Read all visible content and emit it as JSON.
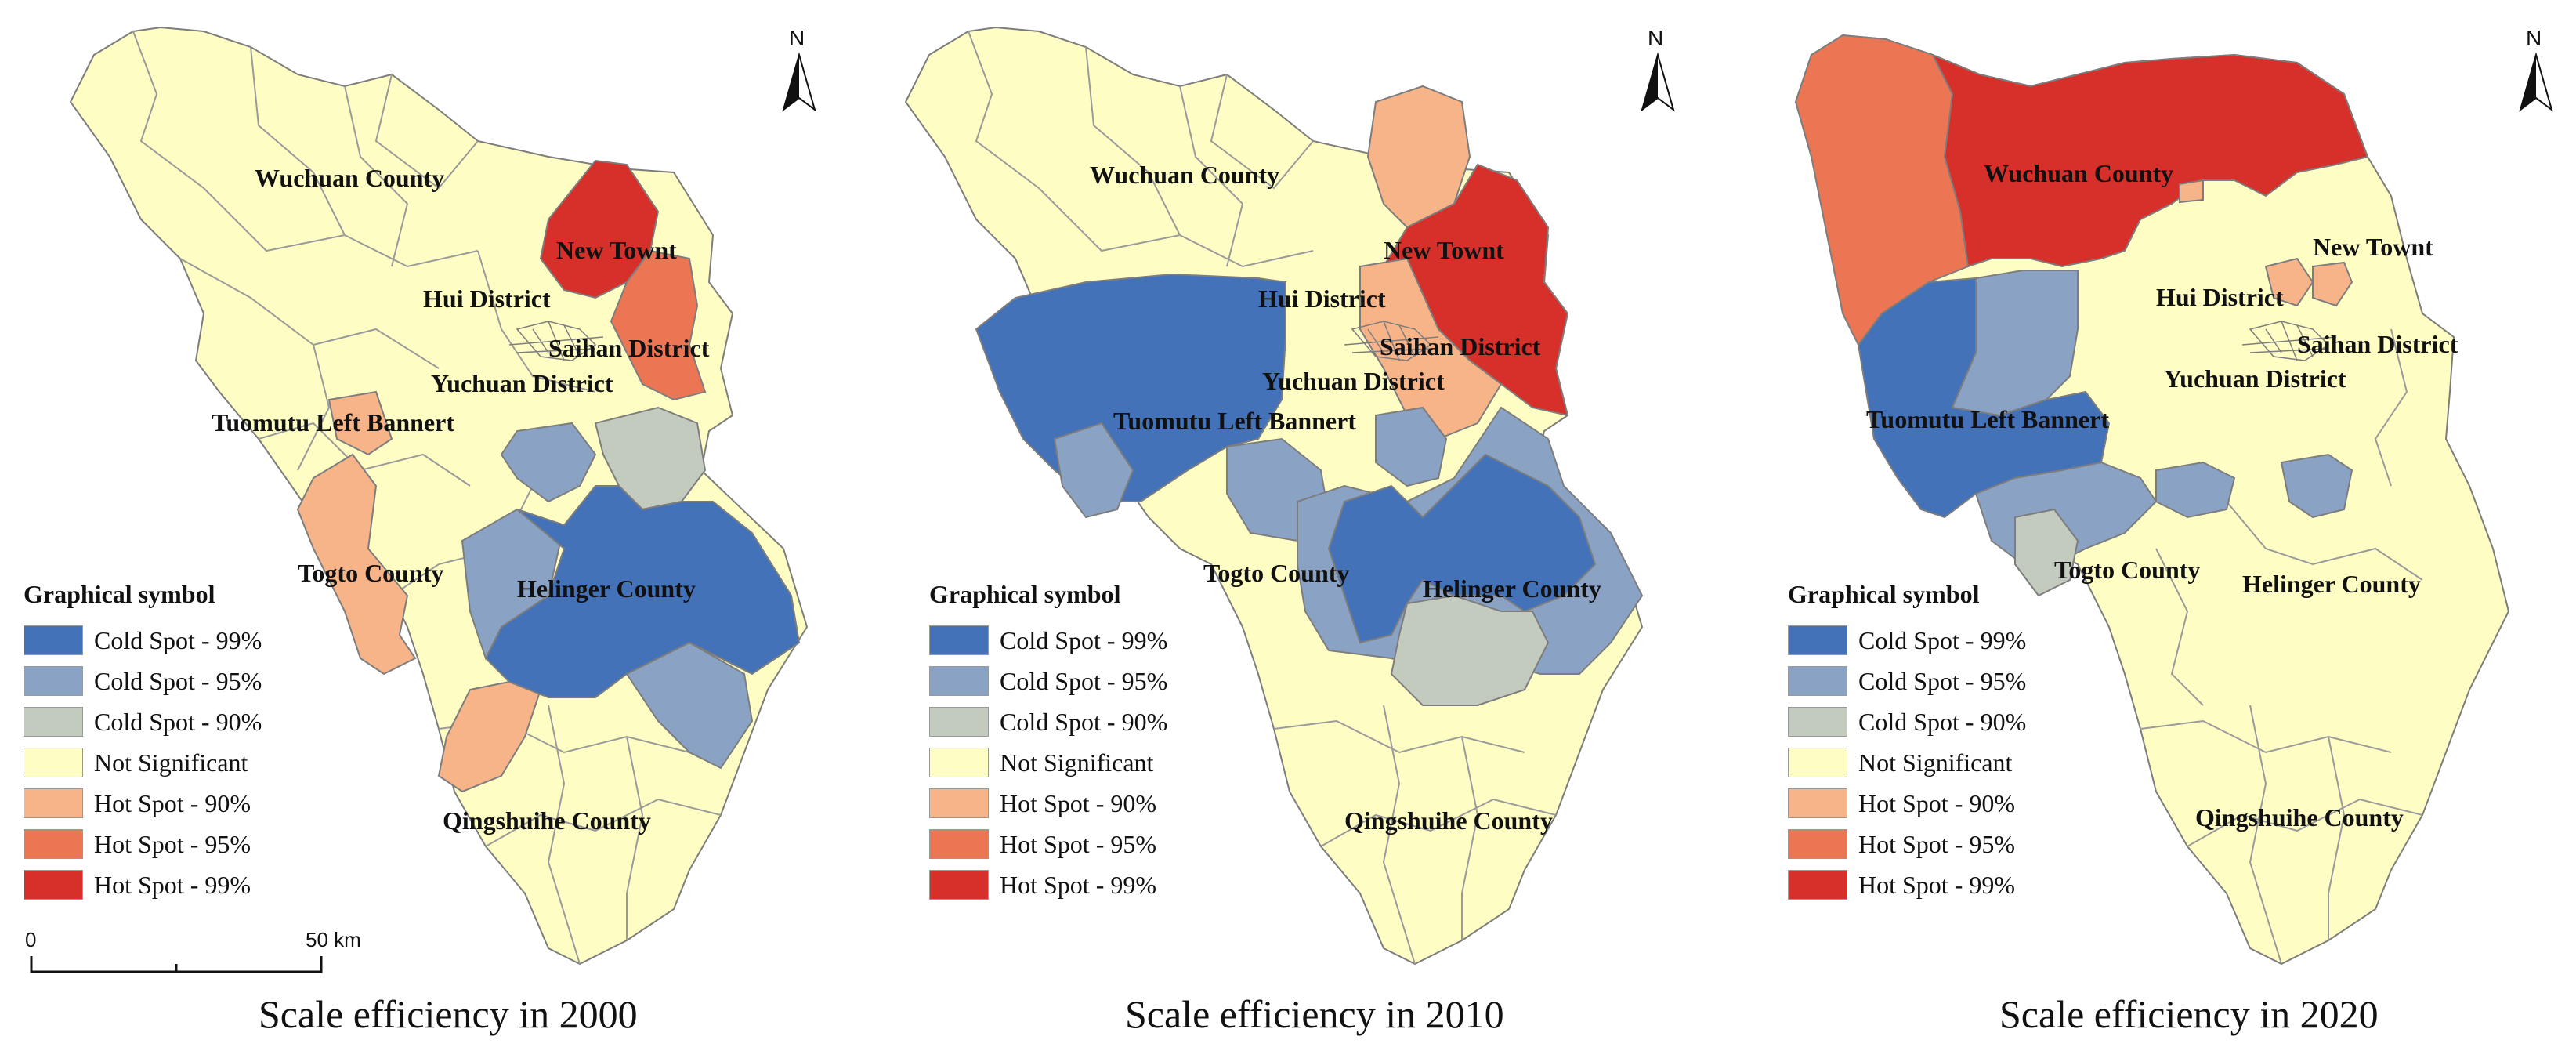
{
  "panels": [
    {
      "caption": "Scale efficiency in 2000",
      "labels": {
        "wuchuan": "Wuchuan County",
        "newtown": "New Townt",
        "hui": "Hui District",
        "saihan": "Saihan District",
        "yuchuan": "Yuchuan District",
        "tuomutu": "Tuomutu Left Bannert",
        "togto": "Togto County",
        "helinger": "Helinger County",
        "qingshuihe": "Qingshuihe County"
      }
    },
    {
      "caption": "Scale efficiency in 2010",
      "labels": {
        "wuchuan": "Wuchuan County",
        "newtown": "New Townt",
        "hui": "Hui District",
        "saihan": "Saihan District",
        "yuchuan": "Yuchuan District",
        "tuomutu": "Tuomutu Left Bannert",
        "togto": "Togto County",
        "helinger": "Helinger County",
        "qingshuihe": "Qingshuihe County"
      }
    },
    {
      "caption": "Scale efficiency in 2020",
      "labels": {
        "wuchuan": "Wuchuan County",
        "newtown": "New Townt",
        "hui": "Hui District",
        "saihan": "Saihan District",
        "yuchuan": "Yuchuan District",
        "tuomutu": "Tuomutu Left Bannert",
        "togto": "Togto County",
        "helinger": "Helinger County",
        "qingshuihe": "Qingshuihe County"
      }
    }
  ],
  "legend": {
    "title": "Graphical symbol",
    "items": [
      {
        "label": "Cold Spot - 99%",
        "color": "#4472b8"
      },
      {
        "label": "Cold Spot - 95%",
        "color": "#8aa2c4"
      },
      {
        "label": "Cold Spot - 90%",
        "color": "#c3cbbe"
      },
      {
        "label": "Not Significant",
        "color": "#fefdc4"
      },
      {
        "label": "Hot Spot - 90%",
        "color": "#f6b488"
      },
      {
        "label": "Hot Spot - 95%",
        "color": "#ec7654"
      },
      {
        "label": "Hot Spot - 99%",
        "color": "#d7302b"
      }
    ]
  },
  "north_arrow": {
    "letter": "N"
  },
  "scale_bar": {
    "start": "0",
    "end": "50 km"
  }
}
